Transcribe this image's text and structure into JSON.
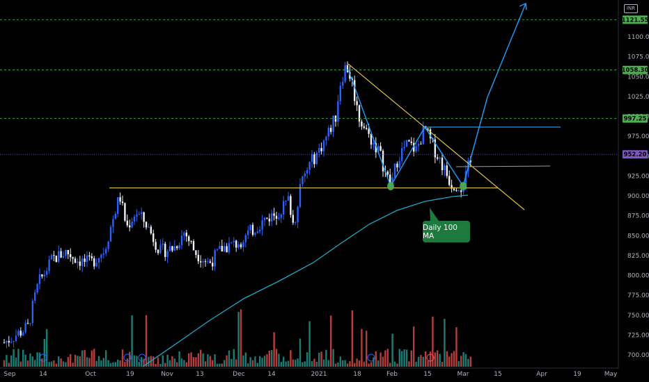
{
  "header": {
    "currency": "INR"
  },
  "callout": {
    "label": "Daily 100 MA"
  },
  "colors": {
    "up": "#2962ff",
    "down": "#f0f3fa",
    "vol_up": "#26a69a",
    "vol_down": "#ef5350",
    "ma": "#1fa8c9",
    "resist": "#4caf50",
    "trend": "#e0c14a",
    "proj": "#2196f3"
  },
  "chart_data": {
    "type": "candlestick",
    "x_ticks": [
      "Sep",
      "14",
      "Oct",
      "19",
      "Nov",
      "13",
      "Dec",
      "14",
      "2021",
      "18",
      "Feb",
      "15",
      "Mar",
      "15",
      "Apr",
      "19",
      "May"
    ],
    "y_ticks": [
      700,
      725,
      750,
      775,
      800,
      825,
      850,
      875,
      900,
      925,
      950,
      975,
      1000,
      1025,
      1050,
      1075,
      1100
    ],
    "ylim": [
      690,
      1130
    ],
    "price_levels": [
      {
        "label": "1121.55",
        "value": 1121.55,
        "color": "#4caf50"
      },
      {
        "label": "1058.30",
        "value": 1058.3,
        "color": "#4caf50"
      },
      {
        "label": "997.25",
        "value": 997.25,
        "color": "#4caf50"
      },
      {
        "label": "952.20",
        "value": 952.2,
        "color": "#7e57c2"
      }
    ],
    "support_level": 910,
    "ma_label": "Daily 100 MA"
  }
}
